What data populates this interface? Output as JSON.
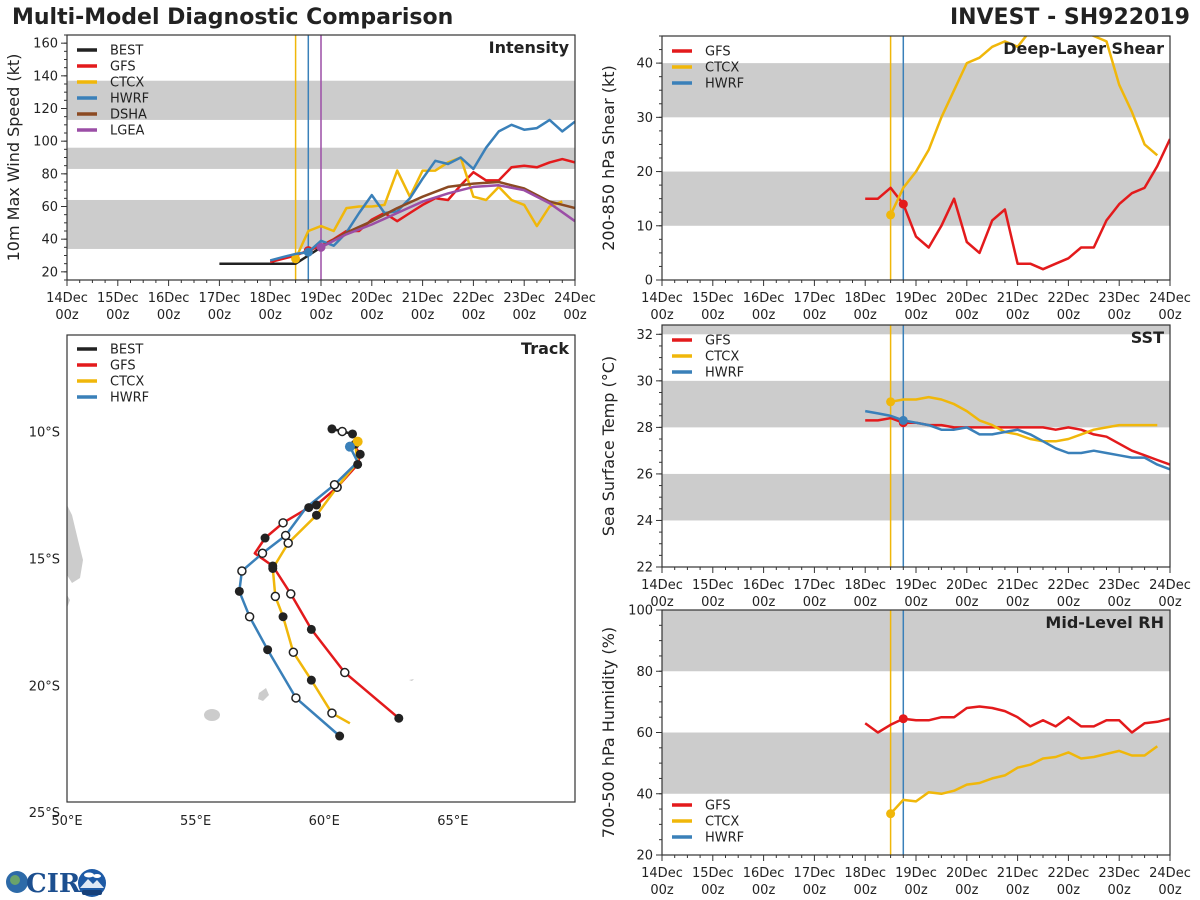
{
  "header": {
    "main_title": "Multi-Model Diagnostic Comparison",
    "storm_title": "INVEST - SH922019"
  },
  "colors": {
    "BEST": "#222222",
    "GFS": "#e31a1c",
    "CTCX": "#f0b70a",
    "HWRF": "#3a80b9",
    "DSHA": "#8b4a22",
    "LGEA": "#9b4ea6",
    "band": "#cccccc",
    "land": "#cccccc"
  },
  "logo": {
    "text": "CIRA",
    "icon": "cira-logo-icon"
  },
  "chart_data": [
    {
      "id": "intensity",
      "type": "line",
      "title": "Intensity",
      "xlabel": "",
      "ylabel": "10m Max Wind Speed (kt)",
      "xlim": [
        0,
        10
      ],
      "ylim": [
        15,
        165
      ],
      "x_ticks": [
        0,
        1,
        2,
        3,
        4,
        5,
        6,
        7,
        8,
        9,
        10
      ],
      "x_tick_labels": [
        "14Dec\n00z",
        "15Dec\n00z",
        "16Dec\n00z",
        "17Dec\n00z",
        "18Dec\n00z",
        "19Dec\n00z",
        "20Dec\n00z",
        "21Dec\n00z",
        "22Dec\n00z",
        "23Dec\n00z",
        "24Dec\n00z"
      ],
      "y_ticks": [
        20,
        40,
        60,
        80,
        100,
        120,
        140,
        160
      ],
      "bands": [
        [
          34,
          64
        ],
        [
          83,
          96
        ],
        [
          113,
          137
        ]
      ],
      "vlines": [
        {
          "x": 4.5,
          "series": "CTCX"
        },
        {
          "x": 4.75,
          "series": "HWRF"
        },
        {
          "x": 5.0,
          "series": "LGEA"
        }
      ],
      "legend": [
        "BEST",
        "GFS",
        "CTCX",
        "HWRF",
        "DSHA",
        "LGEA"
      ],
      "legend_position": "top-left",
      "series": [
        {
          "name": "BEST",
          "x": [
            3,
            3.25,
            3.5,
            3.75,
            4,
            4.25,
            4.5,
            4.75,
            5
          ],
          "values": [
            25,
            25,
            25,
            25,
            25,
            25,
            25,
            30,
            35
          ],
          "marker": null
        },
        {
          "name": "GFS",
          "x": [
            4,
            4.25,
            4.5,
            4.75,
            5,
            5.25,
            5.5,
            5.75,
            6,
            6.25,
            6.5,
            6.75,
            7,
            7.25,
            7.5,
            7.75,
            8,
            8.25,
            8.5,
            8.75,
            9,
            9.25,
            9.5,
            9.75,
            10
          ],
          "values": [
            26,
            28,
            30,
            33,
            36,
            40,
            45,
            45,
            52,
            56,
            51,
            56,
            61,
            65,
            64,
            73,
            81,
            76,
            76,
            84,
            85,
            84,
            87,
            89,
            87
          ],
          "marker_x": 4.75
        },
        {
          "name": "CTCX",
          "x": [
            4.5,
            4.75,
            5,
            5.25,
            5.5,
            5.75,
            6,
            6.25,
            6.5,
            6.75,
            7,
            7.25,
            7.5,
            7.75,
            8,
            8.25,
            8.5,
            8.75,
            9,
            9.25,
            9.5,
            9.75
          ],
          "values": [
            28,
            45,
            48,
            45,
            59,
            60,
            60,
            61,
            82,
            66,
            82,
            82,
            87,
            90,
            66,
            64,
            72,
            64,
            61,
            48,
            60,
            63
          ],
          "marker_x": 4.5
        },
        {
          "name": "HWRF",
          "x": [
            4,
            4.25,
            4.5,
            4.75,
            5,
            5.25,
            5.5,
            5.75,
            6,
            6.25,
            6.5,
            6.75,
            7,
            7.25,
            7.5,
            7.75,
            8,
            8.25,
            8.5,
            8.75,
            9,
            9.25,
            9.5,
            9.75,
            10
          ],
          "values": [
            27,
            29,
            31,
            32,
            39,
            36,
            44,
            56,
            67,
            56,
            57,
            65,
            77,
            88,
            86,
            90,
            83,
            96,
            106,
            110,
            107,
            108,
            113,
            106,
            112
          ],
          "marker_x": 4.75
        },
        {
          "name": "DSHA",
          "x": [
            5,
            5.5,
            6,
            6.5,
            7,
            7.5,
            8,
            8.5,
            9,
            9.5,
            10
          ],
          "values": [
            35,
            44,
            51,
            59,
            66,
            72,
            74,
            75,
            71,
            63,
            59
          ],
          "marker": null
        },
        {
          "name": "LGEA",
          "x": [
            5,
            5.5,
            6,
            6.5,
            7,
            7.5,
            8,
            8.5,
            9,
            9.5,
            10
          ],
          "values": [
            35,
            43,
            49,
            56,
            63,
            68,
            72,
            73,
            70,
            62,
            51
          ],
          "marker_x": 5.0
        }
      ]
    },
    {
      "id": "shear",
      "type": "line",
      "title": "Deep-Layer Shear",
      "xlabel": "",
      "ylabel": "200-850 hPa Shear (kt)",
      "xlim": [
        0,
        10
      ],
      "ylim": [
        0,
        45
      ],
      "x_ticks": [
        0,
        1,
        2,
        3,
        4,
        5,
        6,
        7,
        8,
        9,
        10
      ],
      "x_tick_labels": [
        "14Dec\n00z",
        "15Dec\n00z",
        "16Dec\n00z",
        "17Dec\n00z",
        "18Dec\n00z",
        "19Dec\n00z",
        "20Dec\n00z",
        "21Dec\n00z",
        "22Dec\n00z",
        "23Dec\n00z",
        "24Dec\n00z"
      ],
      "y_ticks": [
        0,
        10,
        20,
        30,
        40
      ],
      "bands": [
        [
          10,
          20
        ],
        [
          30,
          40
        ]
      ],
      "vlines": [
        {
          "x": 4.5,
          "series": "CTCX"
        },
        {
          "x": 4.75,
          "series": "HWRF"
        }
      ],
      "legend": [
        "GFS",
        "CTCX",
        "HWRF"
      ],
      "legend_position": "top-left",
      "series": [
        {
          "name": "GFS",
          "x": [
            4,
            4.25,
            4.5,
            4.75,
            5,
            5.25,
            5.5,
            5.75,
            6,
            6.25,
            6.5,
            6.75,
            7,
            7.25,
            7.5,
            7.75,
            8,
            8.25,
            8.5,
            8.75,
            9,
            9.25,
            9.5,
            9.75,
            10
          ],
          "values": [
            15,
            15,
            17,
            14,
            8,
            6,
            10,
            15,
            7,
            5,
            11,
            13,
            3,
            3,
            2,
            3,
            4,
            6,
            6,
            11,
            14,
            16,
            17,
            21,
            26
          ],
          "marker_x": 4.75
        },
        {
          "name": "CTCX",
          "x": [
            4.5,
            4.75,
            5,
            5.25,
            5.5,
            5.75,
            6,
            6.25,
            6.5,
            6.75,
            7,
            7.25,
            7.5,
            7.75,
            8,
            8.25,
            8.5,
            8.75,
            9,
            9.25,
            9.5,
            9.75
          ],
          "values": [
            12,
            17,
            20,
            24,
            30,
            35,
            40,
            41,
            43,
            44,
            43,
            46,
            47,
            47,
            47,
            46,
            45,
            44,
            36,
            31,
            25,
            23
          ],
          "marker_x": 4.5
        }
      ]
    },
    {
      "id": "sst",
      "type": "line",
      "title": "SST",
      "xlabel": "",
      "ylabel": "Sea Surface Temp (°C)",
      "xlim": [
        0,
        10
      ],
      "ylim": [
        22,
        32.4
      ],
      "x_ticks": [
        0,
        1,
        2,
        3,
        4,
        5,
        6,
        7,
        8,
        9,
        10
      ],
      "x_tick_labels": [
        "14Dec\n00z",
        "15Dec\n00z",
        "16Dec\n00z",
        "17Dec\n00z",
        "18Dec\n00z",
        "19Dec\n00z",
        "20Dec\n00z",
        "21Dec\n00z",
        "22Dec\n00z",
        "23Dec\n00z",
        "24Dec\n00z"
      ],
      "y_ticks": [
        22,
        24,
        26,
        28,
        30,
        32
      ],
      "bands": [
        [
          24,
          26
        ],
        [
          28,
          30
        ],
        [
          32,
          33
        ]
      ],
      "vlines": [
        {
          "x": 4.5,
          "series": "CTCX"
        },
        {
          "x": 4.75,
          "series": "HWRF"
        }
      ],
      "legend": [
        "GFS",
        "CTCX",
        "HWRF"
      ],
      "legend_position": "top-left",
      "series": [
        {
          "name": "GFS",
          "x": [
            4,
            4.25,
            4.5,
            4.75,
            5,
            5.25,
            5.5,
            5.75,
            6,
            6.25,
            6.5,
            6.75,
            7,
            7.25,
            7.5,
            7.75,
            8,
            8.25,
            8.5,
            8.75,
            9,
            9.25,
            9.5,
            9.75,
            10
          ],
          "values": [
            28.3,
            28.3,
            28.4,
            28.2,
            28.2,
            28.1,
            28.1,
            28.0,
            28.0,
            28.0,
            28.0,
            28.0,
            28.0,
            28.0,
            28.0,
            27.9,
            28.0,
            27.9,
            27.7,
            27.6,
            27.3,
            27.0,
            26.8,
            26.6,
            26.4
          ],
          "marker_x": 4.75
        },
        {
          "name": "CTCX",
          "x": [
            4.5,
            4.75,
            5,
            5.25,
            5.5,
            5.75,
            6,
            6.25,
            6.5,
            6.75,
            7,
            7.25,
            7.5,
            7.75,
            8,
            8.25,
            8.5,
            8.75,
            9,
            9.25,
            9.5,
            9.75
          ],
          "values": [
            29.1,
            29.2,
            29.2,
            29.3,
            29.2,
            29.0,
            28.7,
            28.3,
            28.1,
            27.8,
            27.7,
            27.5,
            27.4,
            27.4,
            27.5,
            27.7,
            27.9,
            28.0,
            28.1,
            28.1,
            28.1,
            28.1
          ],
          "marker_x": 4.5
        },
        {
          "name": "HWRF",
          "x": [
            4,
            4.25,
            4.5,
            4.75,
            5,
            5.25,
            5.5,
            5.75,
            6,
            6.25,
            6.5,
            6.75,
            7,
            7.25,
            7.5,
            7.75,
            8,
            8.25,
            8.5,
            8.75,
            9,
            9.25,
            9.5,
            9.75,
            10
          ],
          "values": [
            28.7,
            28.6,
            28.5,
            28.3,
            28.2,
            28.1,
            27.9,
            27.9,
            28.0,
            27.7,
            27.7,
            27.8,
            27.9,
            27.7,
            27.4,
            27.1,
            26.9,
            26.9,
            27.0,
            26.9,
            26.8,
            26.7,
            26.7,
            26.4,
            26.2
          ],
          "marker_x": 4.75
        }
      ]
    },
    {
      "id": "rh",
      "type": "line",
      "title": "Mid-Level RH",
      "xlabel": "",
      "ylabel": "700-500 hPa Humidity (%)",
      "xlim": [
        0,
        10
      ],
      "ylim": [
        20,
        100
      ],
      "x_ticks": [
        0,
        1,
        2,
        3,
        4,
        5,
        6,
        7,
        8,
        9,
        10
      ],
      "x_tick_labels": [
        "14Dec\n00z",
        "15Dec\n00z",
        "16Dec\n00z",
        "17Dec\n00z",
        "18Dec\n00z",
        "19Dec\n00z",
        "20Dec\n00z",
        "21Dec\n00z",
        "22Dec\n00z",
        "23Dec\n00z",
        "24Dec\n00z"
      ],
      "y_ticks": [
        20,
        40,
        60,
        80,
        100
      ],
      "bands": [
        [
          40,
          60
        ],
        [
          80,
          100
        ]
      ],
      "vlines": [
        {
          "x": 4.5,
          "series": "CTCX"
        },
        {
          "x": 4.75,
          "series": "HWRF"
        }
      ],
      "legend": [
        "GFS",
        "CTCX",
        "HWRF"
      ],
      "legend_position": "bottom-left",
      "series": [
        {
          "name": "GFS",
          "x": [
            4,
            4.25,
            4.5,
            4.75,
            5,
            5.25,
            5.5,
            5.75,
            6,
            6.25,
            6.5,
            6.75,
            7,
            7.25,
            7.5,
            7.75,
            8,
            8.25,
            8.5,
            8.75,
            9,
            9.25,
            9.5,
            9.75,
            10
          ],
          "values": [
            63,
            60,
            62.5,
            64.5,
            64,
            64,
            65,
            65,
            68,
            68.5,
            68,
            67,
            65,
            62,
            64,
            62,
            65,
            62,
            62,
            64,
            64,
            60,
            63,
            63.5,
            64.5
          ],
          "marker_x": 4.75
        },
        {
          "name": "CTCX",
          "x": [
            4.5,
            4.75,
            5,
            5.25,
            5.5,
            5.75,
            6,
            6.25,
            6.5,
            6.75,
            7,
            7.25,
            7.5,
            7.75,
            8,
            8.25,
            8.5,
            8.75,
            9,
            9.25,
            9.5,
            9.75
          ],
          "values": [
            33.5,
            38,
            37.5,
            40.5,
            40,
            41,
            43,
            43.5,
            45,
            46,
            48.5,
            49.5,
            51.5,
            52,
            53.5,
            51.5,
            52,
            53,
            54,
            52.5,
            52.5,
            55.5
          ],
          "marker_x": 4.5
        }
      ]
    },
    {
      "id": "track",
      "type": "scatter",
      "title": "Track",
      "xlabel": "",
      "ylabel": "",
      "xlim": [
        50,
        69.75
      ],
      "ylim": [
        -24.6,
        -6.2
      ],
      "x_ticks": [
        50,
        55,
        60,
        65
      ],
      "x_tick_labels": [
        "50°E",
        "55°E",
        "60°E",
        "65°E"
      ],
      "y_ticks": [
        -10,
        -15,
        -20,
        -25
      ],
      "y_tick_labels": [
        "10°S",
        "15°S",
        "20°S",
        "25°S"
      ],
      "legend": [
        "BEST",
        "GFS",
        "CTCX",
        "HWRF"
      ],
      "legend_position": "top-left",
      "series": [
        {
          "name": "BEST",
          "lon": [
            60.3,
            60.7,
            61.1
          ],
          "lat": [
            -9.9,
            -10.0,
            -10.1
          ],
          "markers": [
            "filled",
            "open",
            "filled"
          ]
        },
        {
          "name": "GFS",
          "lon": [
            61.2,
            61.4,
            61.3,
            60.5,
            59.7,
            59.4,
            58.4,
            57.7,
            57.3,
            58.0,
            58.7,
            59.5,
            60.8,
            62.9
          ],
          "lat": [
            -10.6,
            -10.9,
            -11.3,
            -12.2,
            -12.9,
            -13.0,
            -13.6,
            -14.2,
            -14.8,
            -15.3,
            -16.4,
            -17.8,
            -19.5,
            -21.3
          ],
          "markers": [
            "none",
            "filled",
            "filled",
            "open",
            "filled",
            "filled",
            "open",
            "filled",
            "none",
            "filled",
            "open",
            "filled",
            "open",
            "filled"
          ]
        },
        {
          "name": "CTCX",
          "lon": [
            61.2,
            61.3,
            60.5,
            59.7,
            58.6,
            58.0,
            58.1,
            58.4,
            58.8,
            59.5,
            60.3,
            61.0
          ],
          "lat": [
            -10.5,
            -11.2,
            -12.2,
            -13.3,
            -14.4,
            -15.4,
            -16.5,
            -17.3,
            -18.7,
            -19.8,
            -21.1,
            -21.5
          ],
          "markers": [
            "filled",
            "none",
            "open",
            "filled",
            "open",
            "filled",
            "open",
            "filled",
            "open",
            "filled",
            "open",
            "none"
          ]
        },
        {
          "name": "HWRF",
          "lon": [
            61.0,
            61.3,
            60.4,
            59.3,
            58.5,
            57.6,
            56.8,
            56.7,
            57.1,
            57.8,
            58.9,
            60.6
          ],
          "lat": [
            -10.6,
            -11.2,
            -12.1,
            -13.0,
            -14.1,
            -14.8,
            -15.5,
            -16.3,
            -17.3,
            -18.6,
            -20.5,
            -22.0
          ],
          "markers": [
            "filled",
            "none",
            "open",
            "none",
            "open",
            "open",
            "open",
            "filled",
            "open",
            "filled",
            "open",
            "filled"
          ]
        }
      ]
    }
  ]
}
